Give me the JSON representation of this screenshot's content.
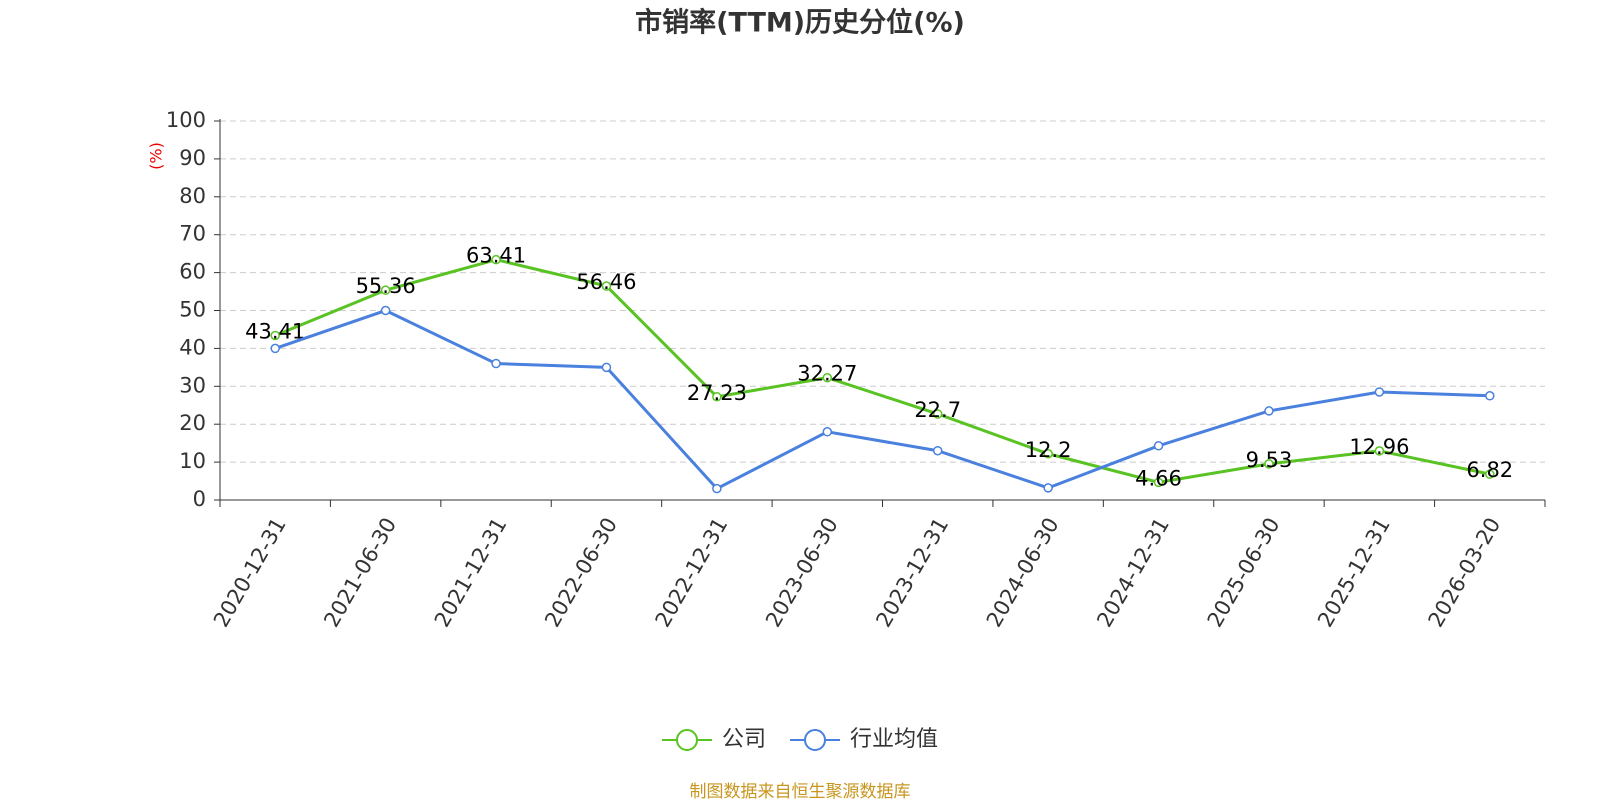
{
  "chart_data": {
    "type": "line",
    "title": "市销率(TTM)历史分位(%)",
    "y_label": "(%)",
    "source": "制图数据来自恒生聚源数据库",
    "categories": [
      "2020-12-31",
      "2021-06-30",
      "2021-12-31",
      "2022-06-30",
      "2022-12-31",
      "2023-06-30",
      "2023-12-31",
      "2024-06-30",
      "2024-12-31",
      "2025-06-30",
      "2025-12-31",
      "2026-03-20"
    ],
    "series": [
      {
        "name": "公司",
        "color": "#58c322",
        "values": [
          43.41,
          55.36,
          63.41,
          56.46,
          27.23,
          32.27,
          22.7,
          12.2,
          4.66,
          9.53,
          12.96,
          6.82
        ],
        "data_labels": true
      },
      {
        "name": "行业均值",
        "color": "#4a80de",
        "values": [
          40,
          50,
          36,
          35,
          3,
          18,
          13,
          3.2,
          14.3,
          23.5,
          28.5,
          27.5
        ],
        "data_labels": false
      }
    ],
    "ylim": [
      0,
      100
    ],
    "yticks": [
      0,
      10,
      20,
      30,
      40,
      50,
      60,
      70,
      80,
      90,
      100
    ],
    "grid": true
  }
}
